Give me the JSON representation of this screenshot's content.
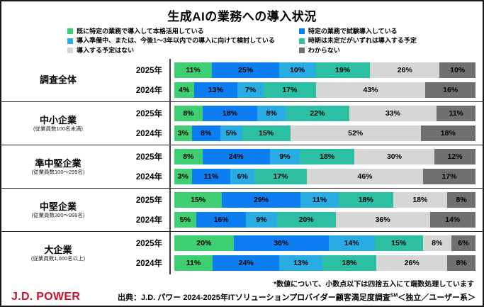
{
  "title": "生成AIの業務への導入状況",
  "chart_data": {
    "type": "bar",
    "stacked": true,
    "orientation": "horizontal",
    "unit": "%",
    "series_labels": [
      "既に特定の業務で導入して本格活用している",
      "特定の業務で試験導入している",
      "導入準備中、または、今後1～3年以内での導入に向けて検討している",
      "時期は未定だがいずれは導入する予定",
      "導入する予定はない",
      "わからない"
    ],
    "series_colors": [
      "#3fce71",
      "#0d7df2",
      "#29ace3",
      "#2cbfa3",
      "#d6d6d6",
      "#707070"
    ],
    "legend_columns": [
      [
        0,
        2,
        4
      ],
      [
        1,
        3,
        5
      ]
    ],
    "groups": [
      {
        "name": "調査全体",
        "note": "",
        "rows": [
          {
            "year": "2025年",
            "values": [
              11,
              25,
              10,
              19,
              26,
              10
            ]
          },
          {
            "year": "2024年",
            "values": [
              4,
              13,
              7,
              17,
              43,
              16
            ]
          }
        ]
      },
      {
        "name": "中小企業",
        "note": "(従業員数100名未満)",
        "rows": [
          {
            "year": "2025年",
            "values": [
              8,
              18,
              8,
              22,
              33,
              11
            ]
          },
          {
            "year": "2024年",
            "values": [
              3,
              8,
              5,
              15,
              52,
              18
            ]
          }
        ]
      },
      {
        "name": "準中堅企業",
        "note": "(従業員数100～299名)",
        "rows": [
          {
            "year": "2025年",
            "values": [
              8,
              24,
              9,
              18,
              30,
              12
            ]
          },
          {
            "year": "2024年",
            "values": [
              3,
              11,
              6,
              17,
              46,
              17
            ]
          }
        ]
      },
      {
        "name": "中堅企業",
        "note": "(従業員数300～999名)",
        "rows": [
          {
            "year": "2025年",
            "values": [
              15,
              29,
              11,
              18,
              18,
              8
            ]
          },
          {
            "year": "2024年",
            "values": [
              5,
              16,
              9,
              20,
              36,
              14
            ]
          }
        ]
      },
      {
        "name": "大企業",
        "note": "(従業員数1,000名以上)",
        "rows": [
          {
            "year": "2025年",
            "values": [
              20,
              36,
              14,
              15,
              8,
              6
            ]
          },
          {
            "year": "2024年",
            "values": [
              11,
              24,
              13,
              18,
              26,
              8
            ]
          }
        ]
      }
    ]
  },
  "footer": {
    "note": "*数値について、小数点以下は四捨五入にて端数処理しています",
    "source_prefix": "出典：J.D. パワー 2024-2025年ITソリューションプロバイダー顧客満足度調査",
    "source_sup": "SM",
    "source_suffix": "＜独立／ユーザー系＞",
    "logo_text": "J.D. POWER",
    "logo_color": "#ce0e2d"
  }
}
